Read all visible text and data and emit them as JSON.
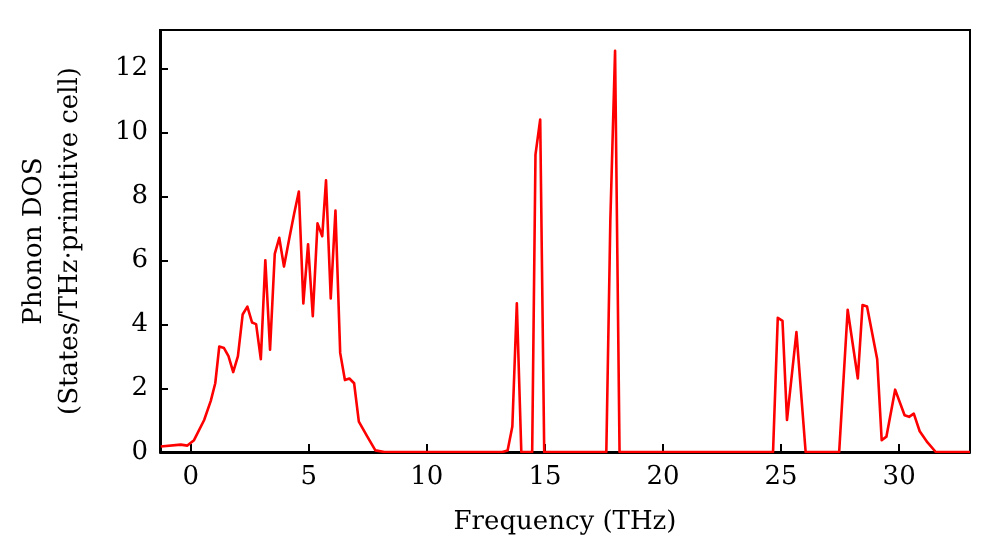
{
  "chart_data": {
    "type": "line",
    "xlabel": "Frequency (THz)",
    "ylabel": "Phonon DOS\n(States/THz·primitive cell)",
    "xlim": [
      -1.3,
      33
    ],
    "ylim": [
      0,
      13.2
    ],
    "xticks": [
      0,
      5,
      10,
      15,
      20,
      25,
      30
    ],
    "yticks": [
      0,
      2,
      4,
      6,
      8,
      10,
      12
    ],
    "grid": false,
    "marker": "none",
    "line_style": "solid",
    "series": [
      {
        "color": "#ff0000",
        "x": [
          -1.27,
          -0.42,
          -0.14,
          0.14,
          0.57,
          0.85,
          1.04,
          1.21,
          1.41,
          1.6,
          1.8,
          2.0,
          2.2,
          2.4,
          2.6,
          2.77,
          2.97,
          3.16,
          3.36,
          3.56,
          3.75,
          3.95,
          4.18,
          4.38,
          4.58,
          4.77,
          4.97,
          5.17,
          5.37,
          5.57,
          5.73,
          5.93,
          6.13,
          6.33,
          6.53,
          6.72,
          6.92,
          7.12,
          7.48,
          7.82,
          8.2,
          13.2,
          13.42,
          13.62,
          13.81,
          14.0,
          14.46,
          14.6,
          14.8,
          14.97,
          17.6,
          17.77,
          17.97,
          18.16,
          24.66,
          24.86,
          25.06,
          25.25,
          25.65,
          26.04,
          27.46,
          27.82,
          28.25,
          28.45,
          28.64,
          29.07,
          29.26,
          29.46,
          29.83,
          30.23,
          30.42,
          30.62,
          30.87,
          31.2,
          31.55,
          33.0
        ],
        "values": [
          0.17,
          0.23,
          0.2,
          0.37,
          1.0,
          1.6,
          2.15,
          3.3,
          3.25,
          3.0,
          2.5,
          3.0,
          4.3,
          4.55,
          4.05,
          4.0,
          2.9,
          6.0,
          3.2,
          6.2,
          6.7,
          5.8,
          6.7,
          7.45,
          8.15,
          4.65,
          6.5,
          4.25,
          7.15,
          6.75,
          8.5,
          4.8,
          7.55,
          3.1,
          2.25,
          2.3,
          2.15,
          0.95,
          0.48,
          0.05,
          0,
          0,
          0.05,
          0.8,
          4.65,
          0,
          0,
          9.3,
          10.4,
          0,
          0,
          7.25,
          12.55,
          0,
          0,
          4.2,
          4.1,
          1.0,
          3.75,
          0,
          0,
          4.45,
          2.3,
          4.6,
          4.55,
          2.9,
          0.37,
          0.48,
          1.95,
          1.15,
          1.1,
          1.2,
          0.65,
          0.3,
          0,
          0
        ]
      }
    ]
  }
}
